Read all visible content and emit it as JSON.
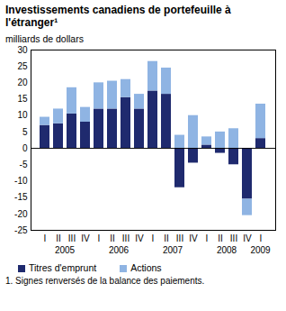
{
  "chart_data": {
    "type": "bar",
    "title": "Investissements canadiens de portefeuille à l'étranger¹",
    "subtitle": "milliards de dollars",
    "note": "1. Signes renversés de la balance des paiements.",
    "stacked": true,
    "grid": false,
    "legend": "bottom",
    "categories": [
      "I",
      "II",
      "III",
      "IV",
      "I",
      "II",
      "III",
      "IV",
      "I",
      "II",
      "III",
      "IV",
      "I",
      "II",
      "III",
      "IV",
      "I"
    ],
    "years": [
      "2005",
      "2005",
      "2005",
      "2005",
      "2006",
      "2006",
      "2006",
      "2006",
      "2007",
      "2007",
      "2007",
      "2007",
      "2008",
      "2008",
      "2008",
      "2008",
      "2009"
    ],
    "series": [
      {
        "name": "Titres d'emprunt",
        "color": "#1f2a6e",
        "values": [
          7,
          7.5,
          10.5,
          8,
          12,
          12,
          15.5,
          12,
          17.5,
          16.5,
          -12,
          -4.5,
          1,
          -1.5,
          -5,
          -15.5,
          3
        ]
      },
      {
        "name": "Actions",
        "color": "#8fb4e3",
        "values": [
          2.5,
          4.5,
          8,
          4.5,
          8,
          8.5,
          5.5,
          4.5,
          9,
          8,
          4,
          10,
          2.5,
          5,
          6,
          -5,
          10.5
        ]
      }
    ],
    "ylim": [
      -25,
      30
    ],
    "yticks": [
      -25,
      -20,
      -15,
      -10,
      -5,
      0,
      5,
      10,
      15,
      20,
      25,
      30
    ]
  }
}
